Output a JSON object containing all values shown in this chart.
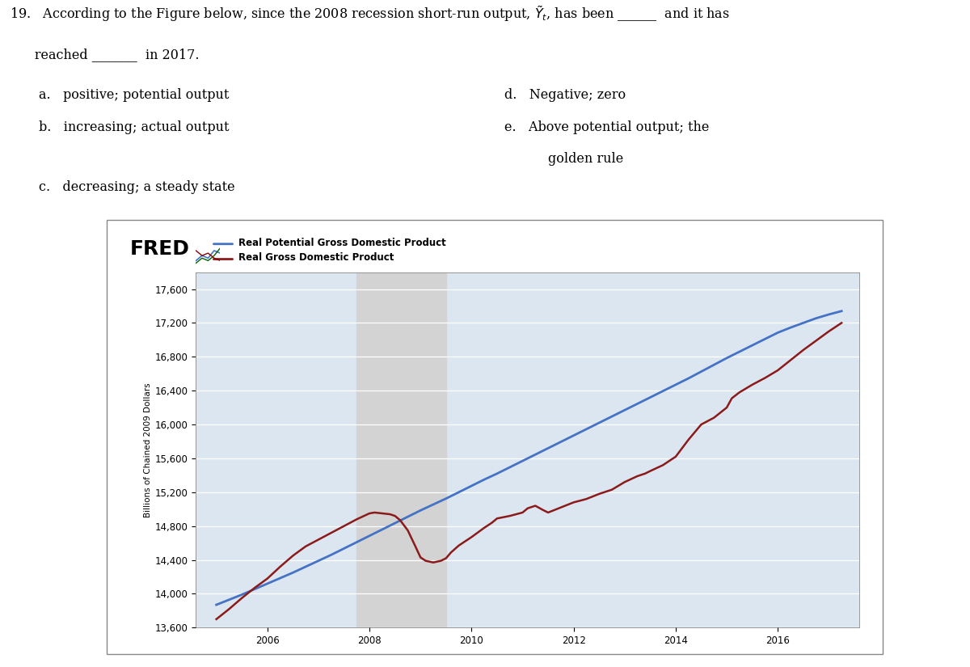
{
  "fred_bg_color": "#dce6f0",
  "plot_area_bg": "#ffffff",
  "recession_shade_color": "#d3d3d3",
  "recession_start": 2007.75,
  "recession_end": 2009.5,
  "potential_color": "#4472c4",
  "actual_color": "#8b1a1a",
  "ylabel": "Billions of Chained 2009 Dollars",
  "ylim": [
    13600,
    17800
  ],
  "yticks": [
    13600,
    14000,
    14400,
    14800,
    15200,
    15600,
    16000,
    16400,
    16800,
    17200,
    17600
  ],
  "xlim": [
    2004.6,
    2017.6
  ],
  "xticks": [
    2006,
    2008,
    2010,
    2012,
    2014,
    2016
  ],
  "legend_potential": "Real Potential Gross Domestic Product",
  "legend_actual": "Real Gross Domestic Product",
  "question_line1": "19.   According to the Figure below, since the 2008 recession short-run output, $\\tilde{Y}_t$, has been ______  and it has",
  "question_line2": "      reached _______  in 2017.",
  "ans_a": "a.   positive; potential output",
  "ans_b": "b.   increasing; actual output",
  "ans_c": "c.   decreasing; a steady state",
  "ans_d": "d.   Negative; zero",
  "ans_e1": "e.   Above potential output; the",
  "ans_e2": "      golden rule",
  "potential_x": [
    2005.0,
    2005.25,
    2005.5,
    2005.75,
    2006.0,
    2006.25,
    2006.5,
    2006.75,
    2007.0,
    2007.25,
    2007.5,
    2007.75,
    2008.0,
    2008.25,
    2008.5,
    2008.75,
    2009.0,
    2009.25,
    2009.5,
    2009.75,
    2010.0,
    2010.25,
    2010.5,
    2010.75,
    2011.0,
    2011.25,
    2011.5,
    2011.75,
    2012.0,
    2012.25,
    2012.5,
    2012.75,
    2013.0,
    2013.25,
    2013.5,
    2013.75,
    2014.0,
    2014.25,
    2014.5,
    2014.75,
    2015.0,
    2015.25,
    2015.5,
    2015.75,
    2016.0,
    2016.25,
    2016.5,
    2016.75,
    2017.0,
    2017.25
  ],
  "potential_y": [
    13870,
    13930,
    13990,
    14055,
    14120,
    14185,
    14250,
    14320,
    14390,
    14460,
    14535,
    14610,
    14685,
    14760,
    14835,
    14910,
    14985,
    15055,
    15125,
    15200,
    15275,
    15350,
    15420,
    15495,
    15570,
    15645,
    15720,
    15795,
    15870,
    15945,
    16020,
    16095,
    16170,
    16245,
    16320,
    16395,
    16470,
    16545,
    16625,
    16705,
    16785,
    16860,
    16935,
    17010,
    17085,
    17145,
    17200,
    17255,
    17300,
    17340
  ],
  "actual_x": [
    2005.0,
    2005.25,
    2005.5,
    2005.75,
    2006.0,
    2006.25,
    2006.5,
    2006.75,
    2007.0,
    2007.25,
    2007.5,
    2007.75,
    2008.0,
    2008.1,
    2008.25,
    2008.4,
    2008.5,
    2008.6,
    2008.75,
    2008.9,
    2009.0,
    2009.1,
    2009.25,
    2009.4,
    2009.5,
    2009.6,
    2009.75,
    2010.0,
    2010.25,
    2010.4,
    2010.5,
    2010.75,
    2011.0,
    2011.1,
    2011.25,
    2011.4,
    2011.5,
    2011.75,
    2012.0,
    2012.25,
    2012.5,
    2012.75,
    2013.0,
    2013.25,
    2013.4,
    2013.5,
    2013.75,
    2014.0,
    2014.1,
    2014.25,
    2014.5,
    2014.75,
    2015.0,
    2015.1,
    2015.25,
    2015.5,
    2015.75,
    2016.0,
    2016.25,
    2016.5,
    2016.75,
    2017.0,
    2017.25
  ],
  "actual_y": [
    13700,
    13820,
    13950,
    14070,
    14180,
    14320,
    14450,
    14560,
    14640,
    14720,
    14800,
    14880,
    14950,
    14960,
    14950,
    14940,
    14920,
    14870,
    14750,
    14560,
    14430,
    14390,
    14370,
    14390,
    14420,
    14490,
    14570,
    14670,
    14780,
    14840,
    14890,
    14920,
    14960,
    15010,
    15040,
    14990,
    14960,
    15020,
    15080,
    15120,
    15180,
    15230,
    15320,
    15390,
    15420,
    15450,
    15520,
    15620,
    15700,
    15820,
    16000,
    16080,
    16200,
    16310,
    16380,
    16470,
    16550,
    16640,
    16760,
    16880,
    16990,
    17100,
    17200
  ]
}
